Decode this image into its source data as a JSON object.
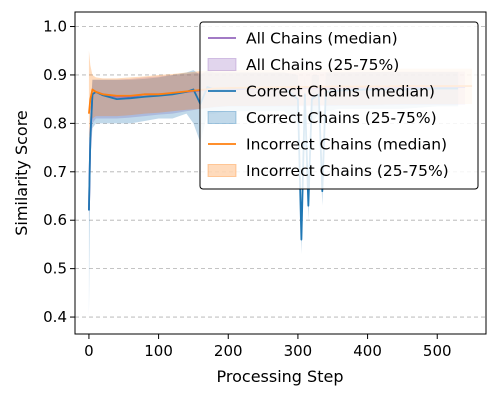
{
  "chart_data": {
    "type": "line",
    "title": "",
    "xlabel": "Processing Step",
    "ylabel": "Similarity Score",
    "xlim": [
      -20,
      570
    ],
    "ylim": [
      0.365,
      1.03
    ],
    "xticks": [
      0,
      100,
      200,
      300,
      400,
      500
    ],
    "yticks": [
      0.4,
      0.5,
      0.6,
      0.7,
      0.8,
      0.9,
      1.0
    ],
    "ytick_labels": [
      "0.4",
      "0.5",
      "0.6",
      "0.7",
      "0.8",
      "0.9",
      "1.0"
    ],
    "grid": "horizontal dashed",
    "legend_position": "top-right",
    "legend": [
      {
        "label": "All Chains (median)",
        "kind": "line",
        "color": "#9467bd"
      },
      {
        "label": "All Chains (25-75%)",
        "kind": "band",
        "color": "#9467bd"
      },
      {
        "label": "Correct Chains (median)",
        "kind": "line",
        "color": "#1f77b4"
      },
      {
        "label": "Correct Chains (25-75%)",
        "kind": "band",
        "color": "#1f77b4"
      },
      {
        "label": "Incorrect Chains (median)",
        "kind": "line",
        "color": "#ff7f0e"
      },
      {
        "label": "Incorrect Chains (25-75%)",
        "kind": "band",
        "color": "#ff7f0e"
      }
    ],
    "series": [
      {
        "name": "All Chains",
        "color": "#9467bd",
        "x": [
          0,
          2,
          5,
          10,
          20,
          40,
          60,
          80,
          100,
          120,
          140,
          160,
          180,
          200,
          250,
          300,
          350,
          400,
          450,
          500,
          540
        ],
        "median": [
          0.62,
          0.77,
          0.86,
          0.865,
          0.86,
          0.855,
          0.855,
          0.86,
          0.86,
          0.862,
          0.865,
          0.868,
          0.87,
          0.87,
          0.872,
          0.872,
          0.873,
          0.874,
          0.874,
          0.875,
          0.875
        ],
        "q25": [
          0.6,
          0.72,
          0.8,
          0.81,
          0.81,
          0.81,
          0.812,
          0.815,
          0.818,
          0.82,
          0.825,
          0.83,
          0.833,
          0.835,
          0.835,
          0.835,
          0.836,
          0.837,
          0.838,
          0.838,
          0.838
        ],
        "q75": [
          0.63,
          0.82,
          0.89,
          0.89,
          0.89,
          0.89,
          0.892,
          0.895,
          0.897,
          0.9,
          0.902,
          0.905,
          0.905,
          0.905,
          0.905,
          0.905,
          0.906,
          0.906,
          0.907,
          0.907,
          0.907
        ]
      },
      {
        "name": "Correct Chains",
        "color": "#1f77b4",
        "x": [
          0,
          2,
          5,
          10,
          20,
          40,
          60,
          80,
          100,
          120,
          140,
          150,
          160,
          170,
          180,
          200,
          240,
          280,
          300,
          305,
          310,
          315,
          320,
          330,
          335,
          340,
          360,
          400,
          450,
          500,
          530
        ],
        "median": [
          0.62,
          0.77,
          0.86,
          0.865,
          0.858,
          0.85,
          0.852,
          0.855,
          0.857,
          0.86,
          0.865,
          0.87,
          0.84,
          0.875,
          0.87,
          0.872,
          0.873,
          0.873,
          0.85,
          0.56,
          0.86,
          0.63,
          0.85,
          0.86,
          0.66,
          0.865,
          0.868,
          0.87,
          0.87,
          0.872,
          0.872
        ],
        "q25": [
          0.4,
          0.72,
          0.79,
          0.8,
          0.8,
          0.8,
          0.8,
          0.805,
          0.81,
          0.81,
          0.82,
          0.8,
          0.76,
          0.82,
          0.82,
          0.825,
          0.825,
          0.825,
          0.8,
          0.53,
          0.82,
          0.6,
          0.8,
          0.82,
          0.63,
          0.825,
          0.83,
          0.83,
          0.83,
          0.835,
          0.835
        ],
        "q75": [
          0.64,
          0.82,
          0.89,
          0.89,
          0.89,
          0.89,
          0.89,
          0.892,
          0.895,
          0.9,
          0.905,
          0.91,
          0.9,
          0.91,
          0.905,
          0.905,
          0.905,
          0.905,
          0.9,
          0.6,
          0.9,
          0.68,
          0.9,
          0.9,
          0.7,
          0.905,
          0.905,
          0.906,
          0.906,
          0.906,
          0.906
        ]
      },
      {
        "name": "Incorrect Chains",
        "color": "#ff7f0e",
        "x": [
          0,
          2,
          5,
          10,
          20,
          40,
          60,
          80,
          100,
          120,
          140,
          160,
          180,
          200,
          250,
          300,
          350,
          400,
          450,
          500,
          550
        ],
        "median": [
          0.82,
          0.85,
          0.87,
          0.865,
          0.86,
          0.857,
          0.857,
          0.86,
          0.86,
          0.863,
          0.866,
          0.869,
          0.872,
          0.873,
          0.874,
          0.875,
          0.876,
          0.876,
          0.877,
          0.877,
          0.877
        ],
        "q25": [
          0.76,
          0.8,
          0.81,
          0.815,
          0.815,
          0.815,
          0.817,
          0.82,
          0.822,
          0.825,
          0.828,
          0.83,
          0.834,
          0.836,
          0.836,
          0.837,
          0.838,
          0.838,
          0.84,
          0.84,
          0.84
        ],
        "q75": [
          0.95,
          0.92,
          0.9,
          0.895,
          0.893,
          0.893,
          0.895,
          0.897,
          0.9,
          0.902,
          0.905,
          0.908,
          0.91,
          0.91,
          0.91,
          0.91,
          0.912,
          0.912,
          0.913,
          0.913,
          0.913
        ]
      }
    ]
  }
}
